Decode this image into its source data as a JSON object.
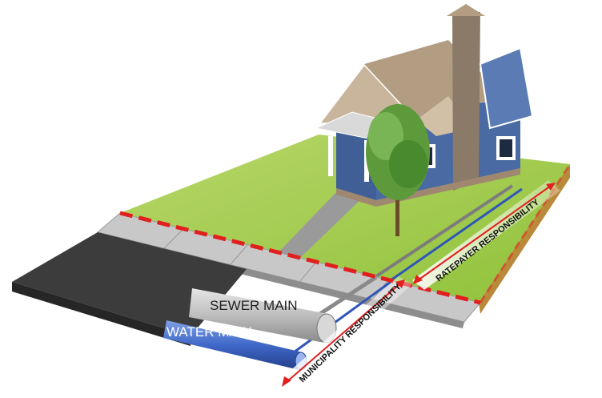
{
  "labels": {
    "sewer_main": "SEWER MAIN",
    "water_main": "WATER MAIN",
    "municipality": "MUNICIPALITY RESPONSIBILITY",
    "ratepayer": "RATEPAYER RESPONSIBILITY"
  }
}
